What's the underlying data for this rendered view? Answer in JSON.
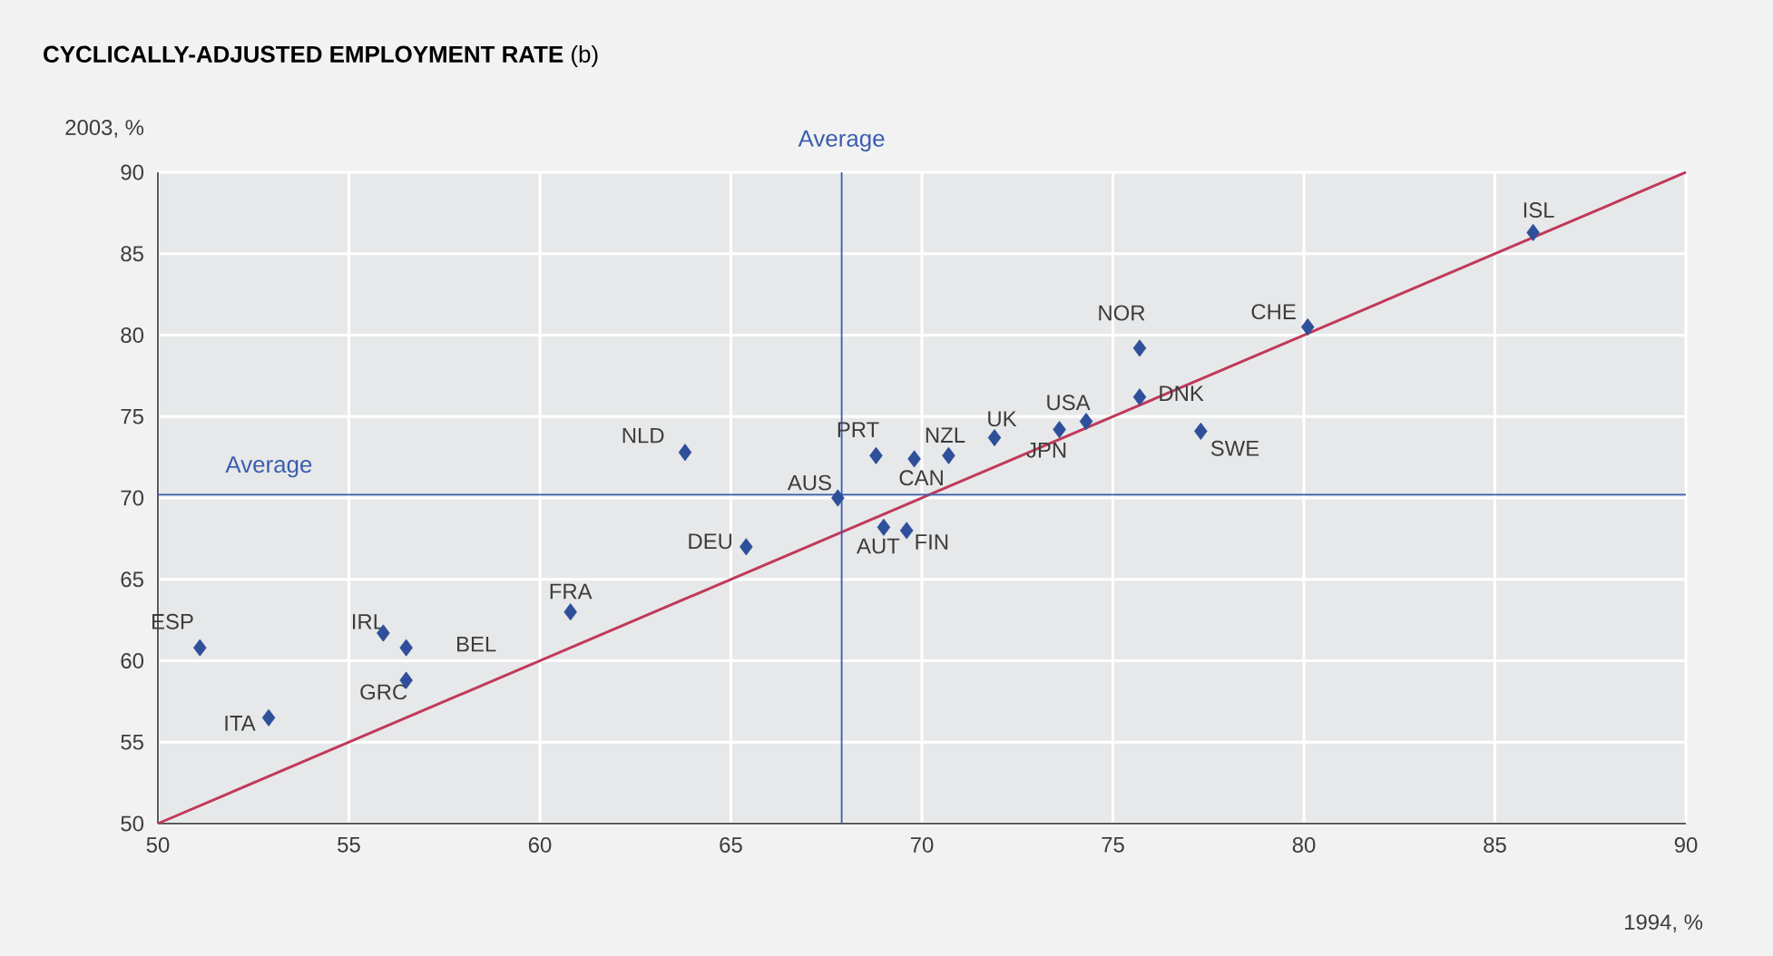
{
  "chart_data": {
    "type": "scatter",
    "title": "**CYCLICALLY-ADJUSTED EMPLOYMENT RATE** (b)",
    "xlabel": "1994, %",
    "ylabel": "2003, %",
    "xlim": [
      50,
      90
    ],
    "ylim": [
      50,
      90
    ],
    "xticks": [
      50,
      55,
      60,
      65,
      70,
      75,
      80,
      85,
      90
    ],
    "yticks": [
      50,
      55,
      60,
      65,
      70,
      75,
      80,
      85,
      90
    ],
    "grid": true,
    "series": [
      {
        "marker": "diamond",
        "color": "#2e4f9a",
        "x": [
          51.1,
          52.9,
          55.9,
          56.5,
          56.5,
          60.8,
          63.8,
          65.4,
          67.8,
          68.8,
          69.0,
          69.8,
          69.6,
          70.7,
          71.9,
          73.6,
          74.3,
          75.7,
          75.7,
          77.3,
          80.1,
          86.0
        ],
        "values": [
          60.8,
          56.5,
          61.7,
          60.8,
          58.8,
          63.0,
          72.8,
          67.0,
          70.0,
          72.6,
          68.2,
          72.4,
          68.0,
          72.6,
          73.7,
          74.2,
          74.7,
          79.2,
          76.2,
          74.1,
          80.5,
          86.3
        ]
      },
      {
        "type": "line",
        "color": "#c0395a",
        "x": [
          50,
          90
        ],
        "values": [
          50,
          90
        ]
      }
    ],
    "ref_lines": [
      {
        "axis": "x",
        "value": 67.9,
        "label": "Average",
        "color": "#3a5dae"
      },
      {
        "axis": "y",
        "value": 70.2,
        "label": "Average",
        "color": "#3a5dae"
      }
    ],
    "annotations": [
      {
        "text": "ESP",
        "x": 51.1,
        "y": 60.8
      },
      {
        "text": "ITA",
        "x": 52.9,
        "y": 56.5
      },
      {
        "text": "IRL",
        "x": 55.9,
        "y": 61.7
      },
      {
        "text": "BEL",
        "x": 56.5,
        "y": 60.8
      },
      {
        "text": "GRC",
        "x": 56.5,
        "y": 58.8
      },
      {
        "text": "FRA",
        "x": 60.8,
        "y": 63.0
      },
      {
        "text": "NLD",
        "x": 63.8,
        "y": 72.8
      },
      {
        "text": "DEU",
        "x": 65.4,
        "y": 67.0
      },
      {
        "text": "AUS",
        "x": 67.8,
        "y": 70.0
      },
      {
        "text": "PRT",
        "x": 68.8,
        "y": 72.6
      },
      {
        "text": "AUT",
        "x": 69.0,
        "y": 68.2
      },
      {
        "text": "CAN",
        "x": 69.8,
        "y": 72.4
      },
      {
        "text": "FIN",
        "x": 69.6,
        "y": 68.0
      },
      {
        "text": "NZL",
        "x": 70.7,
        "y": 72.6
      },
      {
        "text": "UK",
        "x": 71.9,
        "y": 73.7
      },
      {
        "text": "JPN",
        "x": 73.6,
        "y": 74.2
      },
      {
        "text": "USA",
        "x": 74.3,
        "y": 74.7
      },
      {
        "text": "NOR",
        "x": 75.7,
        "y": 79.2
      },
      {
        "text": "DNK",
        "x": 75.7,
        "y": 76.2
      },
      {
        "text": "SWE",
        "x": 77.3,
        "y": 74.1
      },
      {
        "text": "CHE",
        "x": 80.1,
        "y": 80.5
      },
      {
        "text": "ISL",
        "x": 86.0,
        "y": 86.3
      }
    ]
  }
}
